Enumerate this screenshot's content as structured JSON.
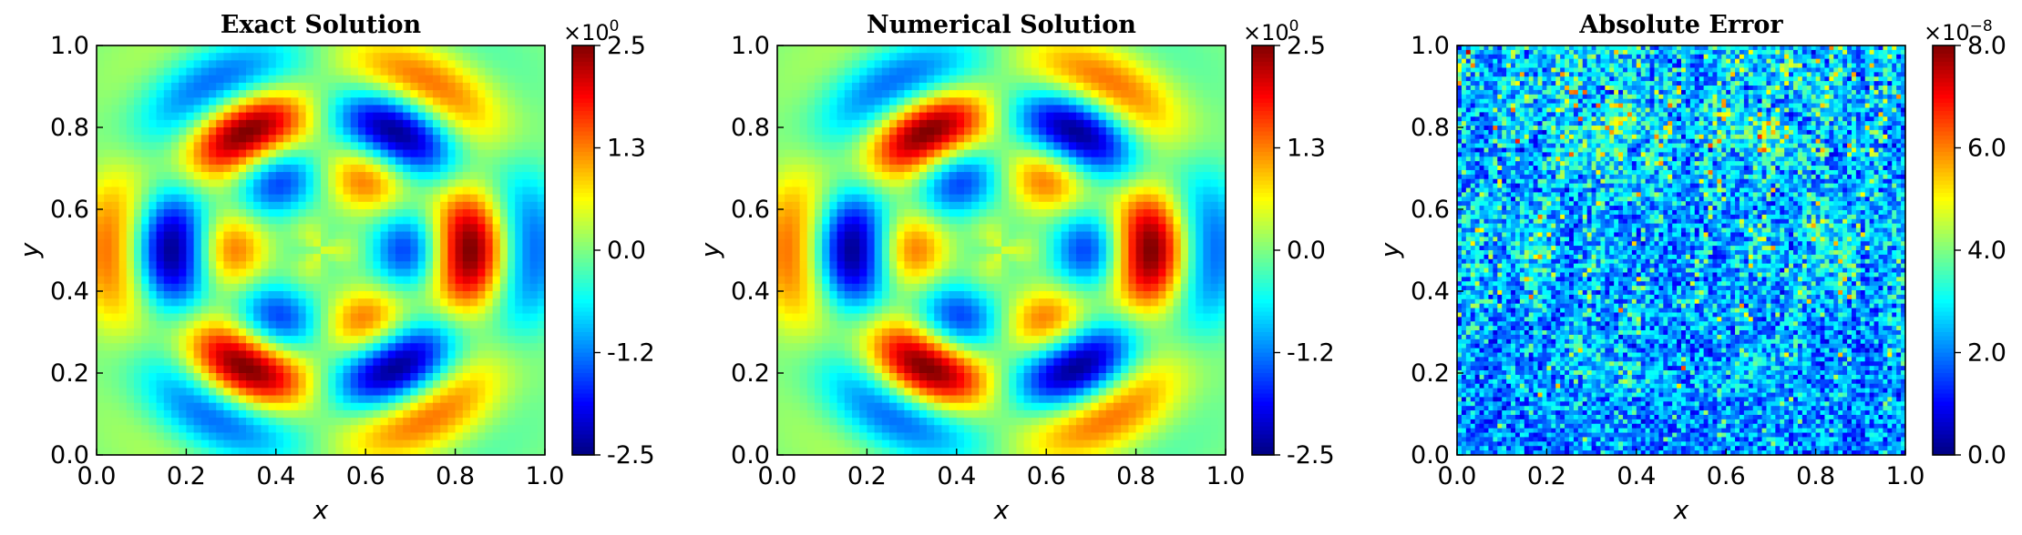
{
  "chart_data": [
    {
      "type": "heatmap",
      "title": "Exact Solution",
      "xlabel": "x",
      "ylabel": "y",
      "xlim": [
        0.0,
        1.0
      ],
      "ylim": [
        0.0,
        1.0
      ],
      "x_ticks": [
        "0.0",
        "0.2",
        "0.4",
        "0.6",
        "0.8",
        "1.0"
      ],
      "y_ticks": [
        "0.0",
        "0.2",
        "0.4",
        "0.6",
        "0.8",
        "1.0"
      ],
      "colormap": "jet",
      "colorbar": {
        "range": [
          -2.5,
          2.5
        ],
        "ticks": [
          "-2.5",
          "-1.2",
          "0.0",
          "1.3",
          "2.5"
        ],
        "multiplier_base": "×10",
        "multiplier_exp": "0"
      },
      "field": "smooth",
      "grid": false
    },
    {
      "type": "heatmap",
      "title": "Numerical Solution",
      "xlabel": "x",
      "ylabel": "y",
      "xlim": [
        0.0,
        1.0
      ],
      "ylim": [
        0.0,
        1.0
      ],
      "x_ticks": [
        "0.0",
        "0.2",
        "0.4",
        "0.6",
        "0.8",
        "1.0"
      ],
      "y_ticks": [
        "0.0",
        "0.2",
        "0.4",
        "0.6",
        "0.8",
        "1.0"
      ],
      "colormap": "jet",
      "colorbar": {
        "range": [
          -2.5,
          2.5
        ],
        "ticks": [
          "-2.5",
          "-1.2",
          "0.0",
          "1.3",
          "2.5"
        ],
        "multiplier_base": "×10",
        "multiplier_exp": "0"
      },
      "field": "smooth",
      "grid": false
    },
    {
      "type": "heatmap",
      "title": "Absolute Error",
      "xlabel": "x",
      "ylabel": "y",
      "xlim": [
        0.0,
        1.0
      ],
      "ylim": [
        0.0,
        1.0
      ],
      "x_ticks": [
        "0.0",
        "0.2",
        "0.4",
        "0.6",
        "0.8",
        "1.0"
      ],
      "y_ticks": [
        "0.0",
        "0.2",
        "0.4",
        "0.6",
        "0.8",
        "1.0"
      ],
      "colormap": "jet",
      "colorbar": {
        "range": [
          0.0,
          8.0
        ],
        "ticks": [
          "0.0",
          "2.0",
          "4.0",
          "6.0",
          "8.0"
        ],
        "multiplier_base": "×10",
        "multiplier_exp": "−8"
      },
      "field": "noise",
      "grid": false
    }
  ]
}
